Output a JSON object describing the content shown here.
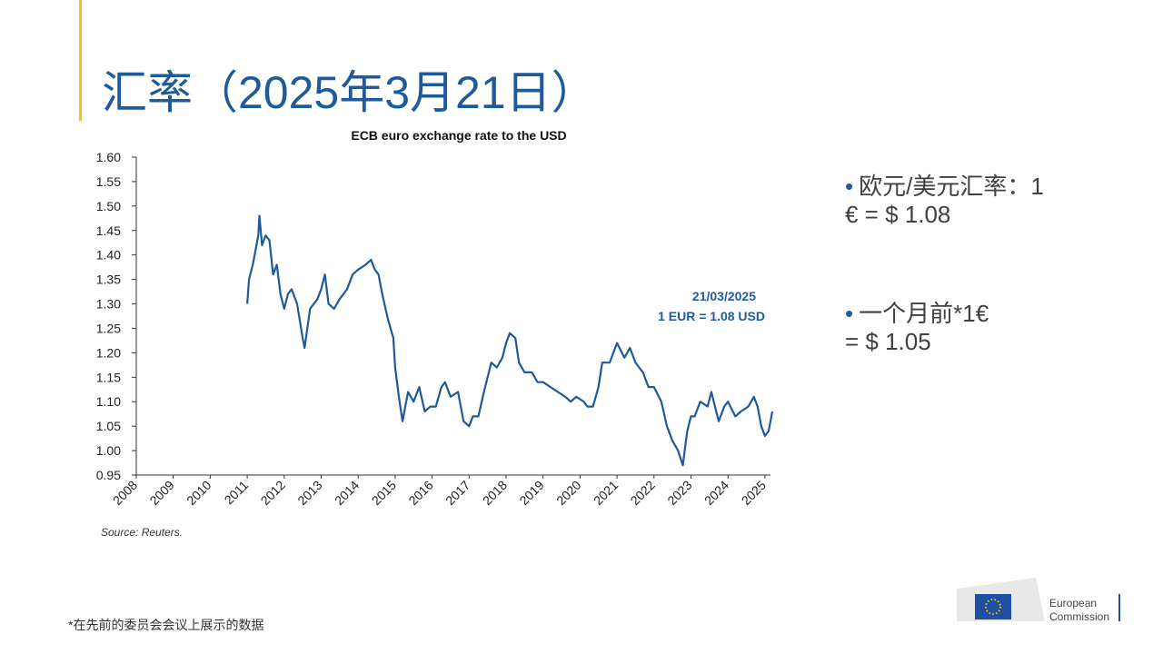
{
  "slide": {
    "title": "汇率（2025年3月21日）",
    "bullets": [
      "欧元/美元汇率：1 € = $ 1.08",
      "一个月前*1€ = $ 1.05"
    ],
    "footnote": "*在先前的委员会会议上展示的数据",
    "logo": [
      "European",
      "Commission"
    ]
  },
  "chart_data": {
    "type": "line",
    "title": "ECB euro exchange rate to the USD",
    "source": "Source: Reuters.",
    "annotations": [
      "21/03/2025",
      "1 EUR = 1.08 USD"
    ],
    "x": [
      2011.0,
      2011.05,
      2011.15,
      2011.3,
      2011.33,
      2011.4,
      2011.5,
      2011.6,
      2011.7,
      2011.8,
      2011.9,
      2012.0,
      2012.1,
      2012.2,
      2012.35,
      2012.5,
      2012.55,
      2012.7,
      2012.9,
      2013.0,
      2013.1,
      2013.2,
      2013.35,
      2013.5,
      2013.7,
      2013.85,
      2014.0,
      2014.2,
      2014.35,
      2014.45,
      2014.55,
      2014.65,
      2014.8,
      2014.95,
      2015.0,
      2015.1,
      2015.2,
      2015.35,
      2015.5,
      2015.65,
      2015.8,
      2015.95,
      2016.1,
      2016.25,
      2016.35,
      2016.5,
      2016.7,
      2016.85,
      2017.0,
      2017.1,
      2017.25,
      2017.4,
      2017.6,
      2017.75,
      2017.9,
      2018.0,
      2018.1,
      2018.25,
      2018.35,
      2018.5,
      2018.7,
      2018.85,
      2019.0,
      2019.2,
      2019.4,
      2019.6,
      2019.75,
      2019.9,
      2020.1,
      2020.2,
      2020.35,
      2020.5,
      2020.6,
      2020.8,
      2021.0,
      2021.2,
      2021.35,
      2021.5,
      2021.7,
      2021.85,
      2022.0,
      2022.2,
      2022.35,
      2022.5,
      2022.65,
      2022.78,
      2022.9,
      2023.0,
      2023.1,
      2023.25,
      2023.45,
      2023.55,
      2023.75,
      2023.9,
      2024.0,
      2024.2,
      2024.35,
      2024.55,
      2024.7,
      2024.8,
      2024.9,
      2025.0,
      2025.1,
      2025.2
    ],
    "series": [
      {
        "name": "EUR/USD",
        "color": "#1f5a9a",
        "values": [
          1.3,
          1.35,
          1.38,
          1.44,
          1.48,
          1.42,
          1.44,
          1.43,
          1.36,
          1.38,
          1.32,
          1.29,
          1.32,
          1.33,
          1.3,
          1.23,
          1.21,
          1.29,
          1.31,
          1.33,
          1.36,
          1.3,
          1.29,
          1.31,
          1.33,
          1.36,
          1.37,
          1.38,
          1.39,
          1.37,
          1.36,
          1.32,
          1.27,
          1.23,
          1.17,
          1.11,
          1.06,
          1.12,
          1.1,
          1.13,
          1.08,
          1.09,
          1.09,
          1.13,
          1.14,
          1.11,
          1.12,
          1.06,
          1.05,
          1.07,
          1.07,
          1.12,
          1.18,
          1.17,
          1.19,
          1.22,
          1.24,
          1.23,
          1.18,
          1.16,
          1.16,
          1.14,
          1.14,
          1.13,
          1.12,
          1.11,
          1.1,
          1.11,
          1.1,
          1.09,
          1.09,
          1.13,
          1.18,
          1.18,
          1.22,
          1.19,
          1.21,
          1.18,
          1.16,
          1.13,
          1.13,
          1.1,
          1.05,
          1.02,
          1.0,
          0.97,
          1.04,
          1.07,
          1.07,
          1.1,
          1.09,
          1.12,
          1.06,
          1.09,
          1.1,
          1.07,
          1.08,
          1.09,
          1.11,
          1.09,
          1.05,
          1.03,
          1.04,
          1.08
        ]
      }
    ],
    "xlim": [
      2008,
      2025.15
    ],
    "xticks": [
      2008,
      2009,
      2010,
      2011,
      2012,
      2013,
      2014,
      2015,
      2016,
      2017,
      2018,
      2019,
      2020,
      2021,
      2022,
      2023,
      2024,
      2025
    ],
    "ylim": [
      0.95,
      1.6
    ],
    "yticks": [
      0.95,
      {
        "value": 1.0,
        "label": "1.00"
      },
      1.05,
      {
        "value": 1.1,
        "label": "1.10"
      },
      1.15,
      {
        "value": 1.2,
        "label": "1.20"
      },
      1.25,
      {
        "value": 1.3,
        "label": "1.30"
      },
      1.35,
      {
        "value": 1.4,
        "label": "1.40"
      },
      1.45,
      {
        "value": 1.5,
        "label": "1.50"
      },
      1.55,
      {
        "value": 1.6,
        "label": "1.60"
      }
    ]
  }
}
